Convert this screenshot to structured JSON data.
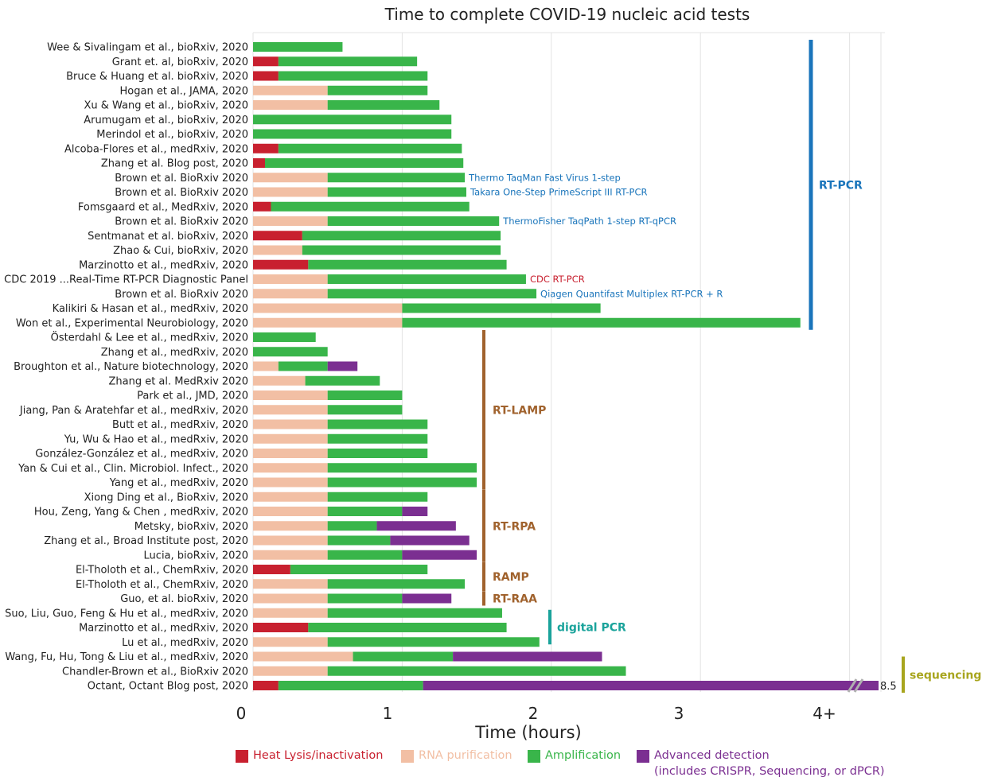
{
  "chart_data": {
    "type": "bar",
    "orientation": "horizontal",
    "stacked": true,
    "title": "Time to complete COVID-19 nucleic acid tests",
    "xlabel": "Time (hours)",
    "ylabel": "",
    "x_ticks": [
      "0",
      "1",
      "2",
      "3",
      "4+"
    ],
    "xlim": [
      0,
      4.2
    ],
    "grid": "vertical",
    "colors": {
      "heat": "#c8202f",
      "rna": "#f2bfa4",
      "amp": "#39b54a",
      "adv": "#7b2f91",
      "rtpcr": "#1a75bb",
      "method": "#a0622d",
      "dpcr": "#1aa39b",
      "seq": "#a8a51e"
    },
    "series": [
      {
        "name": "Heat Lysis/inactivation",
        "key": "heat"
      },
      {
        "name": "RNA purification",
        "key": "rna"
      },
      {
        "name": "Amplification",
        "key": "amp"
      },
      {
        "name": "Advanced detection\n(includes CRISPR, Sequencing, or dPCR)",
        "key": "adv"
      }
    ],
    "rows": [
      {
        "label": "Wee & Sivalingam et al., bioRxiv, 2020",
        "heat": 0,
        "rna": 0,
        "amp": 0.6,
        "adv": 0
      },
      {
        "label": "Grant et. al, bioRxiv, 2020",
        "heat": 0.17,
        "rna": 0,
        "amp": 0.93,
        "adv": 0
      },
      {
        "label": "Bruce & Huang et al. bioRxiv, 2020",
        "heat": 0.17,
        "rna": 0,
        "amp": 1.0,
        "adv": 0
      },
      {
        "label": "Hogan et al., JAMA, 2020",
        "heat": 0,
        "rna": 0.5,
        "amp": 0.67,
        "adv": 0
      },
      {
        "label": "Xu & Wang et al., bioRxiv, 2020",
        "heat": 0,
        "rna": 0.5,
        "amp": 0.75,
        "adv": 0
      },
      {
        "label": "Arumugam et al., bioRxiv, 2020",
        "heat": 0,
        "rna": 0,
        "amp": 1.33,
        "adv": 0
      },
      {
        "label": "Merindol et al., bioRxiv, 2020",
        "heat": 0,
        "rna": 0,
        "amp": 1.33,
        "adv": 0
      },
      {
        "label": "Alcoba-Flores et al., medRxiv, 2020",
        "heat": 0.17,
        "rna": 0,
        "amp": 1.23,
        "adv": 0
      },
      {
        "label": "Zhang et al. Blog post, 2020",
        "heat": 0.08,
        "rna": 0,
        "amp": 1.33,
        "adv": 0
      },
      {
        "label": "Brown et al. BioRxiv 2020",
        "heat": 0,
        "rna": 0.5,
        "amp": 0.92,
        "adv": 0,
        "note": "Thermo TaqMan Fast Virus 1-step",
        "note_color": "rtpcr"
      },
      {
        "label": "Brown et al. BioRxiv 2020",
        "heat": 0,
        "rna": 0.5,
        "amp": 0.93,
        "adv": 0,
        "note": "Takara One-Step PrimeScript III RT-PCR",
        "note_color": "rtpcr"
      },
      {
        "label": "Fomsgaard et al., MedRxiv, 2020",
        "heat": 0.12,
        "rna": 0,
        "amp": 1.33,
        "adv": 0
      },
      {
        "label": "Brown et al. BioRxiv 2020",
        "heat": 0,
        "rna": 0.5,
        "amp": 1.15,
        "adv": 0,
        "note": "ThermoFisher TaqPath 1-step RT-qPCR",
        "note_color": "rtpcr"
      },
      {
        "label": "Sentmanat et al. bioRxiv, 2020",
        "heat": 0.33,
        "rna": 0,
        "amp": 1.33,
        "adv": 0
      },
      {
        "label": "Zhao & Cui, bioRxiv, 2020",
        "heat": 0,
        "rna": 0.33,
        "amp": 1.33,
        "adv": 0
      },
      {
        "label": "Marzinotto et al., medRxiv, 2020",
        "heat": 0.37,
        "rna": 0,
        "amp": 1.33,
        "adv": 0
      },
      {
        "label": "CDC 2019 ...Real-Time RT-PCR Diagnostic Panel",
        "heat": 0,
        "rna": 0.5,
        "amp": 1.33,
        "adv": 0,
        "note": "CDC RT-PCR",
        "note_color": "heat"
      },
      {
        "label": "Brown et al. BioRxiv 2020",
        "heat": 0,
        "rna": 0.5,
        "amp": 1.4,
        "adv": 0,
        "note": "Qiagen Quantifast Multiplex RT-PCR + R",
        "note_color": "rtpcr"
      },
      {
        "label": "Kalikiri & Hasan et al., medRxiv, 2020",
        "heat": 0,
        "rna": 1.0,
        "amp": 1.33,
        "adv": 0
      },
      {
        "label": "Won et al., Experimental Neurobiology, 2020",
        "heat": 0,
        "rna": 1.0,
        "amp": 2.67,
        "adv": 0
      },
      {
        "label": "Österdahl & Lee et al., medRxiv, 2020",
        "heat": 0,
        "rna": 0,
        "amp": 0.42,
        "adv": 0
      },
      {
        "label": "Zhang et al., medRxiv, 2020",
        "heat": 0,
        "rna": 0,
        "amp": 0.5,
        "adv": 0
      },
      {
        "label": "Broughton et al., Nature biotechnology, 2020",
        "heat": 0,
        "rna": 0.17,
        "amp": 0.33,
        "adv": 0.2
      },
      {
        "label": "Zhang et al. MedRxiv 2020",
        "heat": 0,
        "rna": 0.35,
        "amp": 0.5,
        "adv": 0
      },
      {
        "label": "Park et al., JMD, 2020",
        "heat": 0,
        "rna": 0.5,
        "amp": 0.5,
        "adv": 0
      },
      {
        "label": "Jiang, Pan & Aratehfar et al., medRxiv, 2020",
        "heat": 0,
        "rna": 0.5,
        "amp": 0.5,
        "adv": 0
      },
      {
        "label": "Butt et al., medRxiv, 2020",
        "heat": 0,
        "rna": 0.5,
        "amp": 0.67,
        "adv": 0
      },
      {
        "label": "Yu, Wu & Hao et al., medRxiv, 2020",
        "heat": 0,
        "rna": 0.5,
        "amp": 0.67,
        "adv": 0
      },
      {
        "label": "González-González et al., medRxiv, 2020",
        "heat": 0,
        "rna": 0.5,
        "amp": 0.67,
        "adv": 0
      },
      {
        "label": "Yan & Cui et al., Clin. Microbiol. Infect., 2020",
        "heat": 0,
        "rna": 0.5,
        "amp": 1.0,
        "adv": 0
      },
      {
        "label": "Yang et al., medRxiv, 2020",
        "heat": 0,
        "rna": 0.5,
        "amp": 1.0,
        "adv": 0
      },
      {
        "label": "Xiong Ding et al., BioRxiv, 2020",
        "heat": 0,
        "rna": 0.5,
        "amp": 0.67,
        "adv": 0
      },
      {
        "label": "Hou, Zeng, Yang & Chen , medRxiv, 2020",
        "heat": 0,
        "rna": 0.5,
        "amp": 0.5,
        "adv": 0.17
      },
      {
        "label": "Metsky, bioRxiv, 2020",
        "heat": 0,
        "rna": 0.5,
        "amp": 0.33,
        "adv": 0.53
      },
      {
        "label": "Zhang et al., Broad Institute post, 2020",
        "heat": 0,
        "rna": 0.5,
        "amp": 0.42,
        "adv": 0.53
      },
      {
        "label": "Lucia, bioRxiv, 2020",
        "heat": 0,
        "rna": 0.5,
        "amp": 0.5,
        "adv": 0.5
      },
      {
        "label": "El-Tholoth et al., ChemRxiv, 2020",
        "heat": 0.25,
        "rna": 0,
        "amp": 0.92,
        "adv": 0
      },
      {
        "label": "El-Tholoth et al., ChemRxiv, 2020",
        "heat": 0,
        "rna": 0.5,
        "amp": 0.92,
        "adv": 0
      },
      {
        "label": "Guo, et al. bioRxiv, 2020",
        "heat": 0,
        "rna": 0.5,
        "amp": 0.5,
        "adv": 0.33
      },
      {
        "label": "Suo, Liu, Guo, Feng & Hu et al., medRxiv, 2020",
        "heat": 0,
        "rna": 0.5,
        "amp": 1.17,
        "adv": 0
      },
      {
        "label": "Marzinotto et al., medRxiv, 2020",
        "heat": 0.37,
        "rna": 0,
        "amp": 1.33,
        "adv": 0
      },
      {
        "label": "Lu et al., medRxiv, 2020",
        "heat": 0,
        "rna": 0.5,
        "amp": 1.42,
        "adv": 0
      },
      {
        "label": "Wang, Fu, Hu, Tong & Liu et al., medRxiv, 2020",
        "heat": 0,
        "rna": 0.67,
        "amp": 0.67,
        "adv": 1.0
      },
      {
        "label": "Chandler-Brown et al., BioRxiv 2020",
        "heat": 0,
        "rna": 0.5,
        "amp": 2.0,
        "adv": 0
      },
      {
        "label": "Octant, Octant Blog post, 2020",
        "heat": 0.17,
        "rna": 0,
        "amp": 0.97,
        "adv": 7.36,
        "total": 8.5,
        "broken_axis": true,
        "value_label": "8.5"
      }
    ],
    "groups": [
      {
        "name": "RT-PCR",
        "start": 0,
        "end": 19,
        "color": "rtpcr"
      },
      {
        "name": "RT-LAMP",
        "start": 20,
        "end": 30,
        "color": "method"
      },
      {
        "name": "RT-RPA",
        "start": 31,
        "end": 35,
        "color": "method"
      },
      {
        "name": "RAMP",
        "start": 36,
        "end": 37,
        "color": "method"
      },
      {
        "name": "RT-RAA",
        "start": 38,
        "end": 38,
        "color": "method"
      },
      {
        "name": "digital PCR",
        "start": 39,
        "end": 41,
        "color": "dpcr"
      },
      {
        "name": "sequencing",
        "start": 42,
        "end": 44,
        "color": "seq"
      }
    ]
  }
}
